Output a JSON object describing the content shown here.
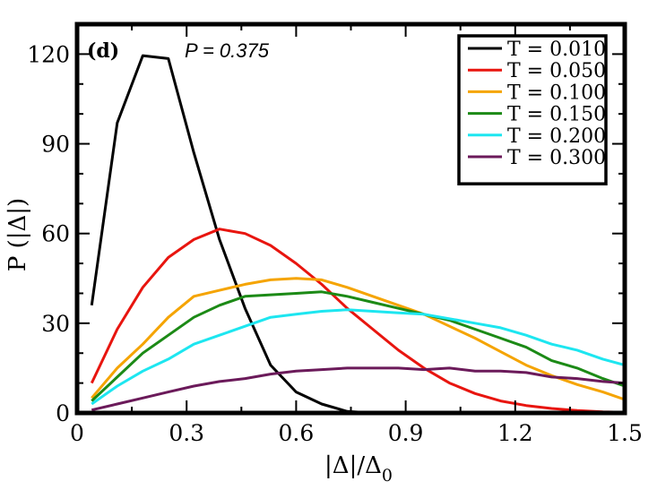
{
  "chart_data": {
    "type": "line",
    "panel_label": "(d)",
    "annotation": "P = 0.375",
    "xlabel": "|Δ|/Δ",
    "xlabel_sub": "0",
    "ylabel": "P (|Δ|)",
    "xlim": [
      0,
      1.5
    ],
    "ylim": [
      0,
      130
    ],
    "xticks": [
      0,
      0.3,
      0.6,
      0.9,
      1.2,
      1.5
    ],
    "xtick_labels": [
      "0",
      "0.3",
      "0.6",
      "0.9",
      "1.2",
      "1.5"
    ],
    "yticks": [
      0,
      30,
      60,
      90,
      120
    ],
    "ytick_labels": [
      "0",
      "30",
      "60",
      "90",
      "120"
    ],
    "legend_position": "top-right",
    "series": [
      {
        "name": "T = 0.010",
        "color": "#000000",
        "x": [
          0.04,
          0.11,
          0.18,
          0.25,
          0.32,
          0.39,
          0.46,
          0.53,
          0.6,
          0.67,
          0.74,
          0.81
        ],
        "y": [
          36,
          97,
          119.5,
          118.5,
          87,
          58,
          35,
          16,
          7,
          3,
          0.5,
          0
        ]
      },
      {
        "name": "T = 0.050",
        "color": "#e8150f",
        "x": [
          0.04,
          0.11,
          0.18,
          0.25,
          0.32,
          0.39,
          0.46,
          0.53,
          0.6,
          0.67,
          0.74,
          0.81,
          0.88,
          0.95,
          1.02,
          1.09,
          1.16,
          1.23,
          1.3,
          1.37,
          1.44,
          1.5
        ],
        "y": [
          10,
          28,
          42,
          52,
          58,
          61.5,
          60,
          56,
          50,
          43,
          35,
          28,
          21,
          15,
          10,
          6.5,
          4,
          2.5,
          1.5,
          0.8,
          0.4,
          0.2
        ]
      },
      {
        "name": "T = 0.100",
        "color": "#f5a400",
        "x": [
          0.04,
          0.11,
          0.18,
          0.25,
          0.32,
          0.39,
          0.46,
          0.53,
          0.6,
          0.67,
          0.74,
          0.81,
          0.88,
          0.95,
          1.02,
          1.09,
          1.16,
          1.23,
          1.3,
          1.37,
          1.44,
          1.5
        ],
        "y": [
          5,
          15,
          23,
          32,
          39,
          41,
          43,
          44.5,
          45,
          44.5,
          42,
          39,
          36,
          33,
          29,
          25,
          20.5,
          16,
          12.5,
          9.5,
          7,
          4.5
        ]
      },
      {
        "name": "T = 0.150",
        "color": "#1c8a16",
        "x": [
          0.04,
          0.11,
          0.18,
          0.25,
          0.32,
          0.39,
          0.46,
          0.53,
          0.6,
          0.67,
          0.74,
          0.81,
          0.88,
          0.95,
          1.02,
          1.09,
          1.16,
          1.23,
          1.3,
          1.37,
          1.44,
          1.5
        ],
        "y": [
          4,
          12,
          20,
          26,
          32,
          36,
          39,
          39.5,
          40,
          40.5,
          39,
          37,
          35,
          33,
          31,
          28,
          25,
          22,
          17.5,
          15,
          11.5,
          9
        ]
      },
      {
        "name": "T = 0.200",
        "color": "#1de6f0",
        "x": [
          0.04,
          0.11,
          0.18,
          0.25,
          0.32,
          0.39,
          0.46,
          0.53,
          0.6,
          0.67,
          0.74,
          0.81,
          0.88,
          0.95,
          1.02,
          1.09,
          1.16,
          1.23,
          1.3,
          1.37,
          1.44,
          1.5
        ],
        "y": [
          3,
          9,
          14,
          18,
          23,
          26,
          29,
          32,
          33,
          34,
          34.5,
          34,
          33.5,
          33,
          31.5,
          30,
          28.5,
          26,
          23,
          21,
          18,
          16
        ]
      },
      {
        "name": "T = 0.300",
        "color": "#6b1a5a",
        "x": [
          0.04,
          0.11,
          0.18,
          0.25,
          0.32,
          0.39,
          0.46,
          0.53,
          0.6,
          0.67,
          0.74,
          0.81,
          0.88,
          0.95,
          1.02,
          1.09,
          1.16,
          1.23,
          1.3,
          1.37,
          1.44,
          1.5
        ],
        "y": [
          1,
          3,
          5,
          7,
          9,
          10.5,
          11.5,
          13,
          14,
          14.5,
          15,
          15,
          15,
          14.5,
          15,
          14,
          14,
          13.5,
          12,
          11.5,
          10.5,
          10
        ]
      }
    ]
  }
}
